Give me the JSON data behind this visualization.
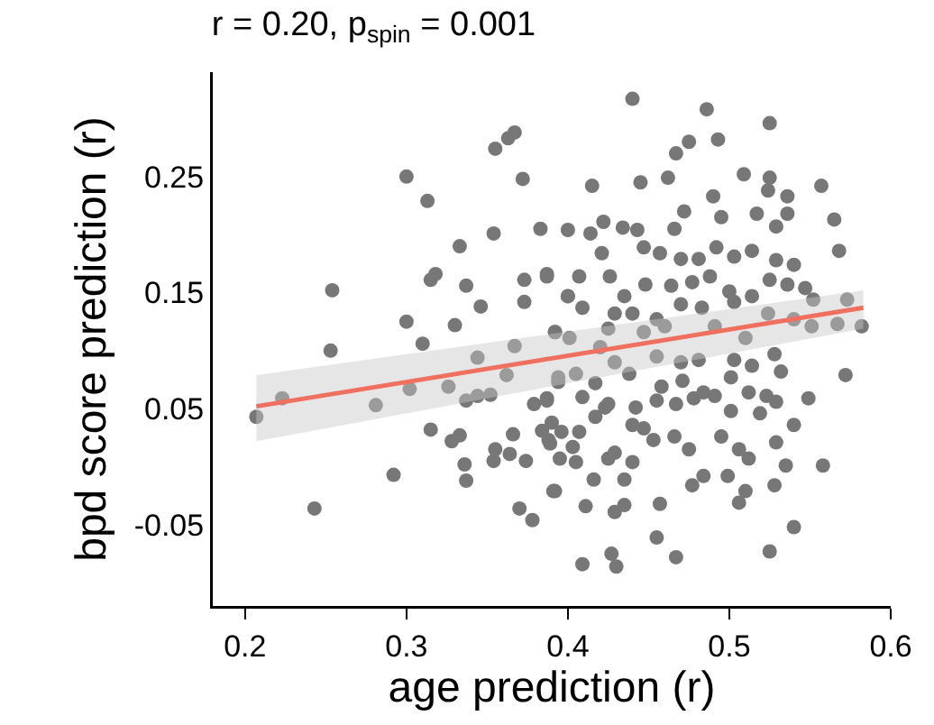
{
  "chart_data": {
    "type": "scatter",
    "title": "r = 0.20, p$_{spin}$ = 0.001",
    "xlabel": "age prediction (r)",
    "ylabel": "bpd score prediction (r)",
    "xlim": [
      0.18,
      0.6
    ],
    "xticks": [
      0.2,
      0.3,
      0.4,
      0.5,
      0.6
    ],
    "ylim": [
      -0.12,
      0.34
    ],
    "yticks": [
      0.25,
      0.15,
      0.05,
      -0.05
    ],
    "grid": false,
    "series": [
      {
        "marker": "circle",
        "color": "#777777",
        "x": [
          0.207,
          0.223,
          0.243,
          0.254,
          0.253,
          0.281,
          0.292,
          0.3,
          0.313,
          0.3,
          0.31,
          0.302,
          0.315,
          0.318,
          0.315,
          0.333,
          0.337,
          0.33,
          0.346,
          0.354,
          0.355,
          0.363,
          0.367,
          0.372,
          0.383,
          0.387,
          0.373,
          0.373,
          0.344,
          0.326,
          0.337,
          0.344,
          0.352,
          0.333,
          0.328,
          0.336,
          0.337,
          0.355,
          0.364,
          0.354,
          0.374,
          0.366,
          0.37,
          0.378,
          0.392,
          0.379,
          0.387,
          0.394,
          0.392,
          0.367,
          0.362,
          0.384,
          0.389,
          0.395,
          0.4,
          0.44,
          0.486,
          0.525,
          0.475,
          0.493,
          0.467,
          0.415,
          0.445,
          0.462,
          0.509,
          0.525,
          0.524,
          0.536,
          0.557,
          0.565,
          0.568,
          0.49,
          0.472,
          0.495,
          0.517,
          0.536,
          0.529,
          0.4,
          0.414,
          0.422,
          0.434,
          0.443,
          0.466,
          0.387,
          0.407,
          0.421,
          0.426,
          0.447,
          0.457,
          0.47,
          0.481,
          0.492,
          0.503,
          0.514,
          0.529,
          0.54,
          0.4,
          0.409,
          0.435,
          0.448,
          0.464,
          0.477,
          0.488,
          0.5,
          0.514,
          0.525,
          0.536,
          0.547,
          0.552,
          0.573,
          0.429,
          0.44,
          0.455,
          0.47,
          0.483,
          0.503,
          0.524,
          0.54,
          0.567,
          0.582,
          0.392,
          0.401,
          0.425,
          0.447,
          0.46,
          0.491,
          0.51,
          0.551,
          0.42,
          0.429,
          0.455,
          0.47,
          0.481,
          0.503,
          0.514,
          0.528,
          0.532,
          0.572,
          0.394,
          0.405,
          0.417,
          0.438,
          0.458,
          0.471,
          0.484,
          0.501,
          0.512,
          0.523,
          0.387,
          0.409,
          0.425,
          0.442,
          0.455,
          0.467,
          0.478,
          0.491,
          0.529,
          0.549,
          0.39,
          0.396,
          0.407,
          0.417,
          0.423,
          0.44,
          0.453,
          0.466,
          0.475,
          0.501,
          0.519,
          0.54,
          0.388,
          0.403,
          0.429,
          0.447,
          0.495,
          0.529,
          0.405,
          0.425,
          0.44,
          0.506,
          0.512,
          0.535,
          0.558,
          0.416,
          0.435,
          0.484,
          0.499,
          0.477,
          0.51,
          0.528,
          0.391,
          0.411,
          0.429,
          0.435,
          0.457,
          0.506,
          0.455,
          0.54,
          0.525,
          0.409,
          0.427,
          0.43,
          0.467
        ],
        "values": [
          0.043,
          0.059,
          -0.036,
          0.152,
          0.1,
          0.053,
          -0.007,
          0.25,
          0.229,
          0.125,
          0.106,
          0.067,
          0.032,
          0.166,
          0.161,
          0.19,
          0.156,
          0.122,
          0.138,
          0.201,
          0.274,
          0.283,
          0.288,
          0.248,
          0.205,
          0.166,
          0.161,
          0.142,
          0.094,
          0.069,
          0.057,
          0.061,
          0.062,
          0.027,
          0.022,
          0.002,
          -0.012,
          0.015,
          0.011,
          0.005,
          0.005,
          0.028,
          -0.036,
          -0.046,
          -0.021,
          0.054,
          0.057,
          0.073,
          0.116,
          0.104,
          0.079,
          0.031,
          0.02,
          0.007,
          0.147,
          0.317,
          0.308,
          0.296,
          0.28,
          0.282,
          0.27,
          0.242,
          0.245,
          0.249,
          0.252,
          0.249,
          0.238,
          0.233,
          0.242,
          0.213,
          0.186,
          0.233,
          0.22,
          0.215,
          0.218,
          0.218,
          0.207,
          0.204,
          0.201,
          0.211,
          0.206,
          0.204,
          0.205,
          0.164,
          0.164,
          0.184,
          0.164,
          0.189,
          0.184,
          0.179,
          0.179,
          0.189,
          0.181,
          0.186,
          0.178,
          0.174,
          0.147,
          0.137,
          0.147,
          0.157,
          0.156,
          0.159,
          0.164,
          0.151,
          0.147,
          0.161,
          0.157,
          0.154,
          0.144,
          0.144,
          0.132,
          0.132,
          0.127,
          0.14,
          0.137,
          0.142,
          0.132,
          0.127,
          0.123,
          0.121,
          0.116,
          0.111,
          0.119,
          0.116,
          0.121,
          0.121,
          0.111,
          0.121,
          0.103,
          0.09,
          0.095,
          0.09,
          0.092,
          0.092,
          0.087,
          0.097,
          0.082,
          0.079,
          0.077,
          0.08,
          0.072,
          0.08,
          0.069,
          0.074,
          0.064,
          0.077,
          0.064,
          0.061,
          0.059,
          0.06,
          0.054,
          0.051,
          0.057,
          0.054,
          0.059,
          0.061,
          0.056,
          0.059,
          0.038,
          0.03,
          0.03,
          0.043,
          0.051,
          0.036,
          0.023,
          0.026,
          0.015,
          0.048,
          0.046,
          0.036,
          0.023,
          0.017,
          0.012,
          0.033,
          0.026,
          0.021,
          0.004,
          0.007,
          0.004,
          0.015,
          0.007,
          0.001,
          0.001,
          -0.011,
          -0.011,
          -0.008,
          -0.008,
          -0.016,
          -0.021,
          -0.016,
          -0.021,
          -0.034,
          -0.039,
          -0.033,
          -0.032,
          -0.031,
          -0.061,
          -0.052,
          -0.073,
          -0.084,
          -0.075,
          -0.086,
          -0.078
        ]
      },
      {
        "type": "line",
        "color": "#f07060",
        "x": [
          0.207,
          0.583
        ],
        "values": [
          0.052,
          0.137
        ],
        "lower": [
          0.022,
          0.119
        ],
        "upper": [
          0.079,
          0.152
        ]
      }
    ]
  }
}
